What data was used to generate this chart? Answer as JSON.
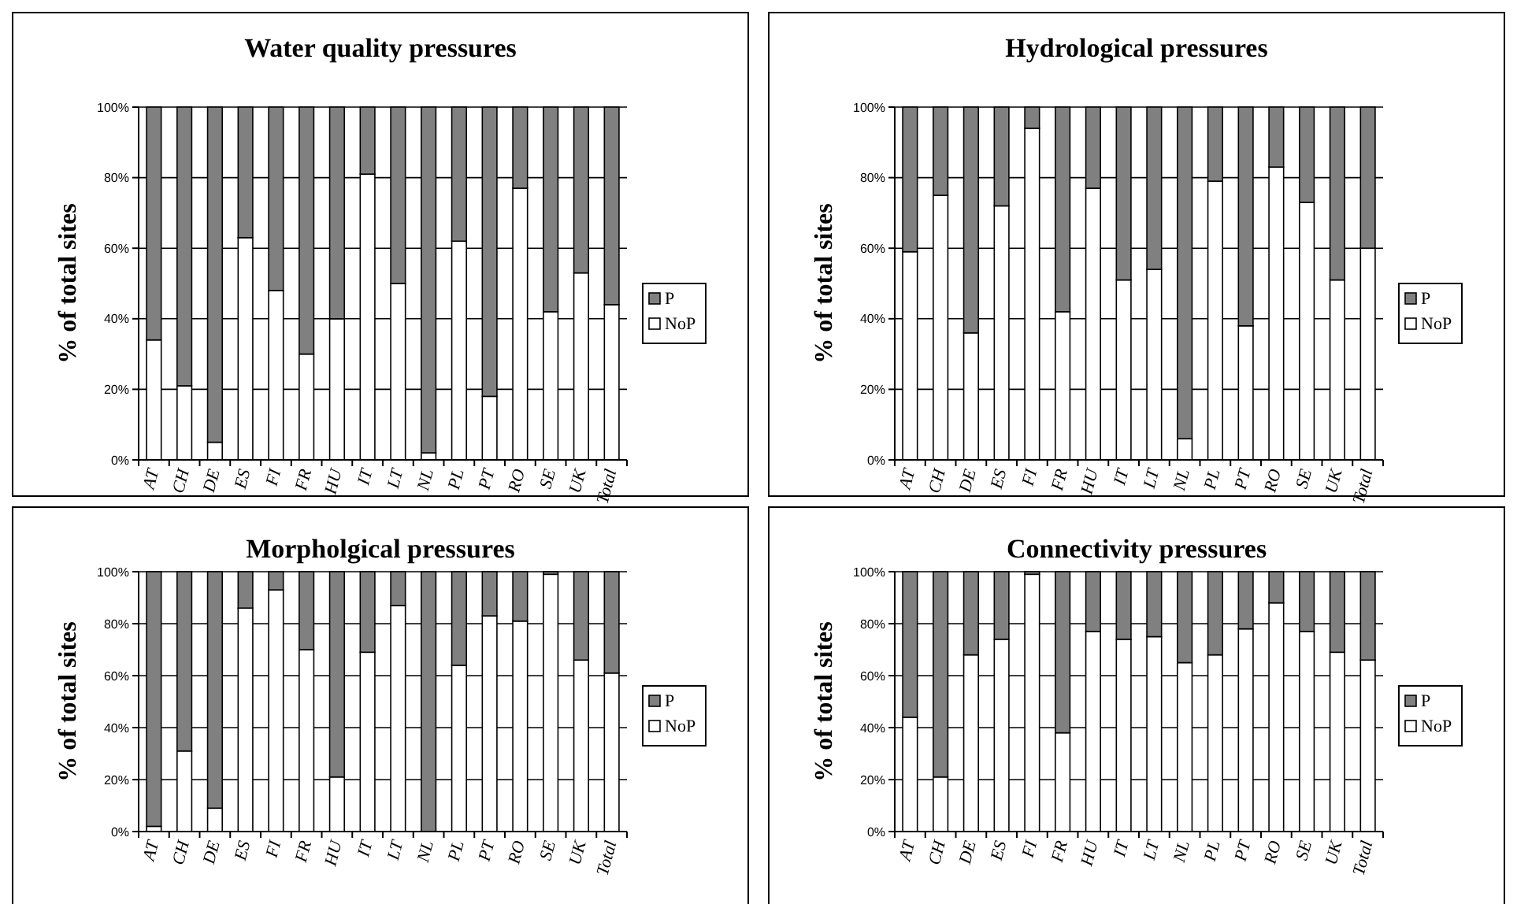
{
  "chart_data": [
    {
      "type": "bar",
      "title": "Water quality pressures",
      "ylabel": "% of total sites",
      "stacked": true,
      "legend": "right",
      "grid": "y",
      "categories": [
        "AT",
        "CH",
        "DE",
        "ES",
        "FI",
        "FR",
        "HU",
        "IT",
        "LT",
        "NL",
        "PL",
        "PT",
        "RO",
        "SE",
        "UK",
        "Total"
      ],
      "ylim": [
        0,
        100
      ],
      "yticks": [
        {
          "value": 0,
          "label": "0%"
        },
        {
          "value": 20,
          "label": "20%"
        },
        {
          "value": 40,
          "label": "40%"
        },
        {
          "value": 60,
          "label": "60%"
        },
        {
          "value": 80,
          "label": "80%"
        },
        {
          "value": 100,
          "label": "100%"
        }
      ],
      "series": [
        {
          "name": "NoP",
          "color": "#ffffff",
          "values": [
            34,
            21,
            5,
            63,
            48,
            30,
            40,
            81,
            50,
            2,
            62,
            18,
            77,
            42,
            53,
            44
          ]
        },
        {
          "name": "P",
          "color": "#808080",
          "values": [
            66,
            79,
            95,
            37,
            52,
            70,
            60,
            19,
            50,
            98,
            38,
            82,
            23,
            58,
            47,
            56
          ]
        }
      ]
    },
    {
      "type": "bar",
      "title": "Hydrological pressures",
      "ylabel": "% of total sites",
      "stacked": true,
      "legend": "right",
      "grid": "y",
      "categories": [
        "AT",
        "CH",
        "DE",
        "ES",
        "FI",
        "FR",
        "HU",
        "IT",
        "LT",
        "NL",
        "PL",
        "PT",
        "RO",
        "SE",
        "UK",
        "Total"
      ],
      "ylim": [
        0,
        100
      ],
      "yticks": [
        {
          "value": 0,
          "label": "0%"
        },
        {
          "value": 20,
          "label": "20%"
        },
        {
          "value": 40,
          "label": "40%"
        },
        {
          "value": 60,
          "label": "60%"
        },
        {
          "value": 80,
          "label": "80%"
        },
        {
          "value": 100,
          "label": "100%"
        }
      ],
      "series": [
        {
          "name": "NoP",
          "color": "#ffffff",
          "values": [
            59,
            75,
            36,
            72,
            94,
            42,
            77,
            51,
            54,
            6,
            79,
            38,
            83,
            73,
            51,
            60
          ]
        },
        {
          "name": "P",
          "color": "#808080",
          "values": [
            41,
            25,
            64,
            28,
            6,
            58,
            23,
            49,
            46,
            94,
            21,
            62,
            17,
            27,
            49,
            40
          ]
        }
      ]
    },
    {
      "type": "bar",
      "title": "Morpholgical pressures",
      "ylabel": "% of total sites",
      "stacked": true,
      "legend": "right",
      "grid": "y",
      "categories": [
        "AT",
        "CH",
        "DE",
        "ES",
        "FI",
        "FR",
        "HU",
        "IT",
        "LT",
        "NL",
        "PL",
        "PT",
        "RO",
        "SE",
        "UK",
        "Total"
      ],
      "ylim": [
        0,
        100
      ],
      "yticks": [
        {
          "value": 0,
          "label": "0%"
        },
        {
          "value": 20,
          "label": "20%"
        },
        {
          "value": 40,
          "label": "40%"
        },
        {
          "value": 60,
          "label": "60%"
        },
        {
          "value": 80,
          "label": "80%"
        },
        {
          "value": 100,
          "label": "100%"
        }
      ],
      "series": [
        {
          "name": "NoP",
          "color": "#ffffff",
          "values": [
            2,
            31,
            9,
            86,
            93,
            70,
            21,
            69,
            87,
            0,
            64,
            83,
            81,
            99,
            66,
            61
          ]
        },
        {
          "name": "P",
          "color": "#808080",
          "values": [
            98,
            69,
            91,
            14,
            7,
            30,
            79,
            31,
            13,
            100,
            36,
            17,
            19,
            1,
            34,
            39
          ]
        }
      ]
    },
    {
      "type": "bar",
      "title": "Connectivity pressures",
      "ylabel": "% of total sites",
      "stacked": true,
      "legend": "right",
      "grid": "y",
      "categories": [
        "AT",
        "CH",
        "DE",
        "ES",
        "FI",
        "FR",
        "HU",
        "IT",
        "LT",
        "NL",
        "PL",
        "PT",
        "RO",
        "SE",
        "UK",
        "Total"
      ],
      "ylim": [
        0,
        100
      ],
      "yticks": [
        {
          "value": 0,
          "label": "0%"
        },
        {
          "value": 20,
          "label": "20%"
        },
        {
          "value": 40,
          "label": "40%"
        },
        {
          "value": 60,
          "label": "60%"
        },
        {
          "value": 80,
          "label": "80%"
        },
        {
          "value": 100,
          "label": "100%"
        }
      ],
      "series": [
        {
          "name": "NoP",
          "color": "#ffffff",
          "values": [
            44,
            21,
            68,
            74,
            99,
            38,
            77,
            74,
            75,
            65,
            68,
            78,
            88,
            77,
            69,
            66
          ]
        },
        {
          "name": "P",
          "color": "#808080",
          "values": [
            56,
            79,
            32,
            26,
            1,
            62,
            23,
            26,
            25,
            35,
            32,
            22,
            12,
            23,
            31,
            34
          ]
        }
      ]
    }
  ]
}
